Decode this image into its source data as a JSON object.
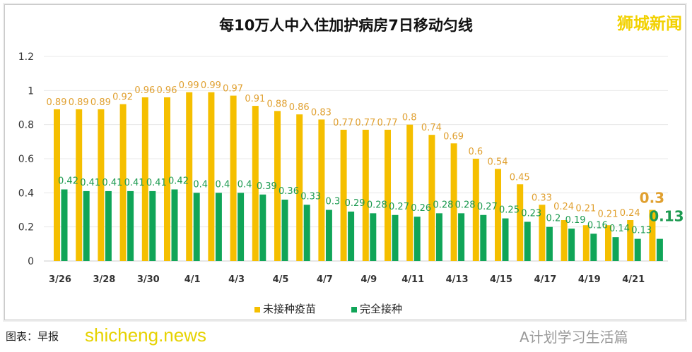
{
  "brand": "狮城新闻",
  "source_text": "图表：早报",
  "watermark": "shicheng.news",
  "wechat": "A计划学习生活篇",
  "chart_data": {
    "type": "bar",
    "title": "每10万人中入住加护病房7日移动匀线",
    "categories": [
      "3/26",
      "3/27",
      "3/28",
      "3/29",
      "3/30",
      "3/31",
      "4/1",
      "4/2",
      "4/3",
      "4/4",
      "4/5",
      "4/6",
      "4/7",
      "4/8",
      "4/9",
      "4/10",
      "4/11",
      "4/12",
      "4/13",
      "4/14",
      "4/15",
      "4/16",
      "4/17",
      "4/18",
      "4/19",
      "4/20",
      "4/21",
      "4/22"
    ],
    "tick_labels": [
      "3/26",
      "3/28",
      "3/30",
      "4/1",
      "4/3",
      "4/5",
      "4/7",
      "4/9",
      "4/11",
      "4/13",
      "4/15",
      "4/17",
      "4/19",
      "4/21"
    ],
    "series": [
      {
        "name": "未接种疫苗",
        "color": "#f5bf00",
        "label_color": "#e0a030",
        "values": [
          0.89,
          0.89,
          0.89,
          0.92,
          0.96,
          0.96,
          0.99,
          0.99,
          0.97,
          0.91,
          0.88,
          0.86,
          0.83,
          0.77,
          0.77,
          0.77,
          0.8,
          0.74,
          0.69,
          0.6,
          0.54,
          0.45,
          0.33,
          0.24,
          0.21,
          0.21,
          0.24,
          0.3
        ]
      },
      {
        "name": "完全接种",
        "color": "#10a558",
        "label_color": "#1c9a50",
        "values": [
          0.42,
          0.41,
          0.41,
          0.41,
          0.41,
          0.42,
          0.4,
          0.4,
          0.4,
          0.39,
          0.36,
          0.33,
          0.3,
          0.29,
          0.28,
          0.27,
          0.26,
          0.28,
          0.28,
          0.27,
          0.25,
          0.23,
          0.2,
          0.19,
          0.16,
          0.14,
          0.13,
          0.13
        ]
      }
    ],
    "yticks": [
      "0",
      "0.2",
      "0.4",
      "0.6",
      "0.8",
      "1",
      "1.2"
    ],
    "ylim": [
      0,
      1.2
    ],
    "grid": true,
    "legend": "bottom"
  }
}
